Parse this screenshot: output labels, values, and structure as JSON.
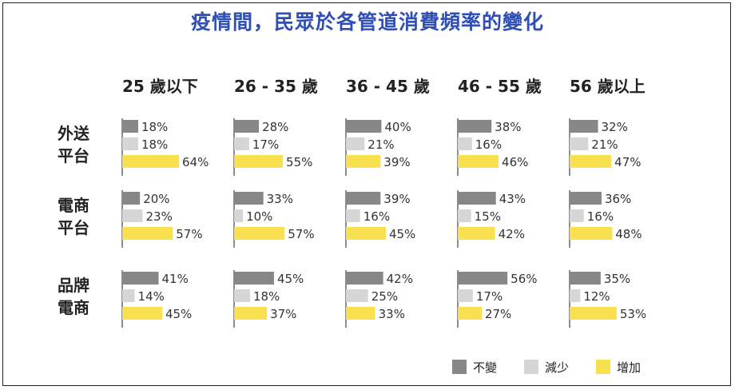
{
  "title": "疫情間，民眾於各管道消費頻率的變化",
  "chart_data": {
    "type": "bar",
    "orientation": "horizontal",
    "columns": [
      "25 歲以下",
      "26 - 35 歲",
      "36 - 45 歲",
      "46 - 55 歲",
      "56 歲以上"
    ],
    "rows": [
      {
        "label_lines": [
          "外送",
          "平台"
        ]
      },
      {
        "label_lines": [
          "電商",
          "平台"
        ]
      },
      {
        "label_lines": [
          "品牌",
          "電商"
        ]
      }
    ],
    "series": [
      {
        "name": "不變",
        "color": "#878787"
      },
      {
        "name": "減少",
        "color": "#d6d6d6"
      },
      {
        "name": "增加",
        "color": "#f8e04e"
      }
    ],
    "values": [
      [
        [
          18,
          18,
          64
        ],
        [
          28,
          17,
          55
        ],
        [
          40,
          21,
          39
        ],
        [
          38,
          16,
          46
        ],
        [
          32,
          21,
          47
        ]
      ],
      [
        [
          20,
          23,
          57
        ],
        [
          33,
          10,
          57
        ],
        [
          39,
          16,
          45
        ],
        [
          43,
          15,
          42
        ],
        [
          36,
          16,
          48
        ]
      ],
      [
        [
          41,
          14,
          45
        ],
        [
          45,
          18,
          37
        ],
        [
          42,
          25,
          33
        ],
        [
          56,
          17,
          27
        ],
        [
          35,
          12,
          53
        ]
      ]
    ],
    "value_suffix": "%",
    "xlim": [
      0,
      100
    ],
    "legend_position": "bottom-right"
  }
}
